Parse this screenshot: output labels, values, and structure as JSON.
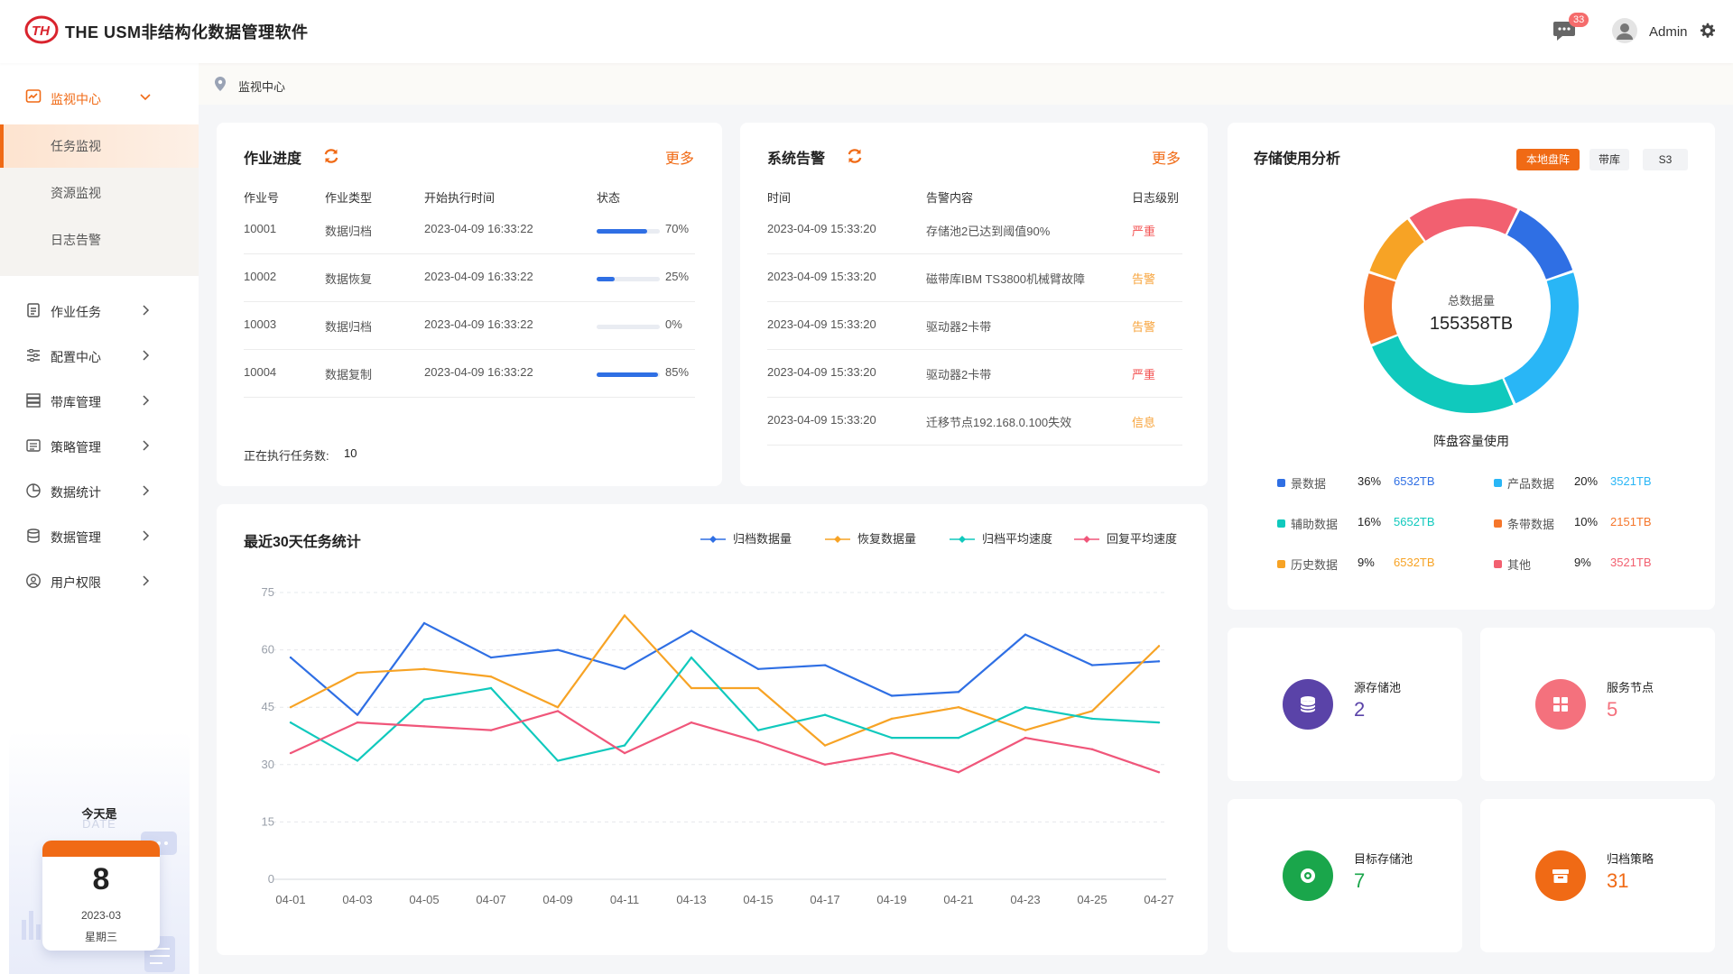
{
  "header": {
    "app_title": "THE USM非结构化数据管理软件",
    "message_badge": "33",
    "user_name": "Admin"
  },
  "sidebar": {
    "main_menu": {
      "label": "监视中心"
    },
    "sub_items": [
      {
        "label": "任务监视",
        "active": true
      },
      {
        "label": "资源监视",
        "active": false
      },
      {
        "label": "日志告警",
        "active": false
      }
    ],
    "nav_items": [
      {
        "label": "作业任务",
        "icon": "clipboard-icon"
      },
      {
        "label": "配置中心",
        "icon": "sliders-icon"
      },
      {
        "label": "带库管理",
        "icon": "server-icon"
      },
      {
        "label": "策略管理",
        "icon": "list-icon"
      },
      {
        "label": "数据统计",
        "icon": "pie-icon"
      },
      {
        "label": "数据管理",
        "icon": "database-icon"
      },
      {
        "label": "用户权限",
        "icon": "user-icon"
      }
    ],
    "calendar": {
      "title": "今天是",
      "subtitle": "DATE",
      "day": "8",
      "date": "2023-03",
      "weekday": "星期三"
    }
  },
  "breadcrumb": {
    "text": "监视中心"
  },
  "job_progress": {
    "title": "作业进度",
    "more": "更多",
    "headers": [
      "作业号",
      "作业类型",
      "开始执行时间",
      "状态"
    ],
    "rows": [
      {
        "id": "10001",
        "type": "数据归档",
        "start": "2023-04-09 16:33:22",
        "progress": 0.7,
        "progress_text": "70%"
      },
      {
        "id": "10002",
        "type": "数据恢复",
        "start": "2023-04-09 16:33:22",
        "progress": 0.25,
        "progress_text": "25%"
      },
      {
        "id": "10003",
        "type": "数据归档",
        "start": "2023-04-09 16:33:22",
        "progress": 0.0,
        "progress_text": "0%"
      },
      {
        "id": "10004",
        "type": "数据复制",
        "start": "2023-04-09 16:33:22",
        "progress": 0.85,
        "progress_text": "85%"
      }
    ],
    "running_label": "正在执行任务数:",
    "running_count": "10"
  },
  "alerts": {
    "title": "系统告警",
    "more": "更多",
    "headers": [
      "时间",
      "告警内容",
      "日志级别"
    ],
    "rows": [
      {
        "time": "2023-04-09 15:33:20",
        "content": "存储池2已达到阈值90%",
        "level": "严重",
        "level_type": "serious"
      },
      {
        "time": "2023-04-09 15:33:20",
        "content": "磁带库IBM TS3800机械臂故障",
        "level": "告警",
        "level_type": "warn"
      },
      {
        "time": "2023-04-09 15:33:20",
        "content": "驱动器2卡带",
        "level": "告警",
        "level_type": "warn"
      },
      {
        "time": "2023-04-09 15:33:20",
        "content": "驱动器2卡带",
        "level": "严重",
        "level_type": "serious"
      },
      {
        "time": "2023-04-09 15:33:20",
        "content": "迁移节点192.168.0.100失效",
        "level": "信息",
        "level_type": "info"
      }
    ]
  },
  "storage": {
    "title": "存储使用分析",
    "tabs": [
      {
        "label": "本地盘阵",
        "active": true
      },
      {
        "label": "带库",
        "active": false
      },
      {
        "label": "S3",
        "active": false
      }
    ],
    "center_label": "总数据量",
    "center_value": "155358TB",
    "caption": "阵盘容量使用",
    "legend": [
      {
        "name": "景数据",
        "pct": "36%",
        "value": "6532TB",
        "color": "#2f6fe4",
        "value_color": "#2f6fe4"
      },
      {
        "name": "产品数据",
        "pct": "20%",
        "value": "3521TB",
        "color": "#29b6f6",
        "value_color": "#29b6f6"
      },
      {
        "name": "辅助数据",
        "pct": "16%",
        "value": "5652TB",
        "color": "#10c9bd",
        "value_color": "#10c9bd"
      },
      {
        "name": "条带数据",
        "pct": "10%",
        "value": "2151TB",
        "color": "#f5762b",
        "value_color": "#f5762b"
      },
      {
        "name": "历史数据",
        "pct": "9%",
        "value": "6532TB",
        "color": "#f7a325",
        "value_color": "#f7a325"
      },
      {
        "name": "其他",
        "pct": "9%",
        "value": "3521TB",
        "color": "#f26070",
        "value_color": "#f26070"
      }
    ]
  },
  "stats": [
    {
      "label": "源存储池",
      "value": "2",
      "color": "#5a43a8",
      "icon": "database-icon"
    },
    {
      "label": "服务节点",
      "value": "5",
      "color": "#f4717d",
      "icon": "grid-icon"
    },
    {
      "label": "目标存储池",
      "value": "7",
      "color": "#1aa64b",
      "icon": "target-icon"
    },
    {
      "label": "归档策略",
      "value": "31",
      "color": "#f06a15",
      "icon": "archive-box-icon"
    }
  ],
  "trend": {
    "title": "最近30天任务统计"
  },
  "chart_data": {
    "type": "line",
    "x": [
      "04-01",
      "04-03",
      "04-05",
      "04-07",
      "04-09",
      "04-11",
      "04-13",
      "04-15",
      "04-17",
      "04-19",
      "04-21",
      "04-23",
      "04-25",
      "04-27"
    ],
    "ylim": [
      0,
      75
    ],
    "yticks": [
      0,
      15,
      30,
      45,
      60,
      75
    ],
    "grid": true,
    "legend_position": "top-right",
    "series": [
      {
        "name": "归档数据量",
        "color": "#2f6fe4",
        "values": [
          58,
          43,
          67,
          58,
          60,
          55,
          65,
          55,
          56,
          48,
          49,
          64,
          56,
          57
        ]
      },
      {
        "name": "恢复数据量",
        "color": "#f7a325",
        "values": [
          45,
          54,
          55,
          53,
          45,
          69,
          50,
          50,
          35,
          42,
          45,
          39,
          44,
          61
        ]
      },
      {
        "name": "归档平均速度",
        "color": "#10c9bd",
        "values": [
          41,
          31,
          47,
          50,
          31,
          35,
          58,
          39,
          43,
          37,
          37,
          45,
          42,
          41
        ]
      },
      {
        "name": "回复平均速度",
        "color": "#f0567a",
        "values": [
          33,
          41,
          40,
          39,
          44,
          33,
          41,
          36,
          30,
          33,
          28,
          37,
          34,
          28
        ]
      }
    ]
  }
}
